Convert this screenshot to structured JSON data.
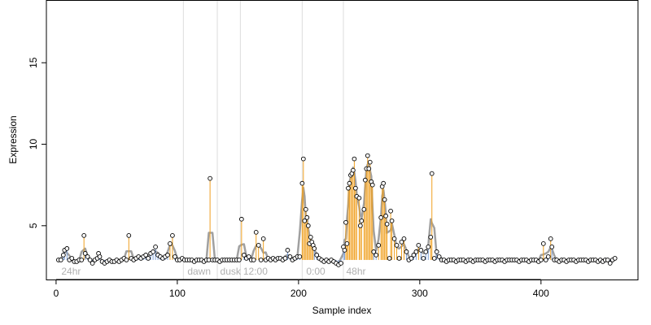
{
  "chart_data": {
    "type": "scatter",
    "title": "",
    "xlabel": "Sample index",
    "ylabel": "Expression",
    "xlim": [
      -8,
      480
    ],
    "ylim": [
      1.7,
      18.8
    ],
    "x_ticks": [
      0,
      100,
      200,
      300,
      400
    ],
    "y_ticks": [
      5,
      10,
      15
    ],
    "grid": false,
    "legend": "none",
    "region_lines": [
      105,
      133,
      152,
      203,
      237
    ],
    "region_labels": [
      {
        "x": 3,
        "text": "24hr"
      },
      {
        "x": 107,
        "text": "dawn"
      },
      {
        "x": 134,
        "text": "dusk"
      },
      {
        "x": 153,
        "text": "12:00"
      },
      {
        "x": 205,
        "text": "0:00"
      },
      {
        "x": 238,
        "text": "48hr"
      }
    ],
    "baseline": 2.9,
    "series": [
      {
        "values": [
          [
            2,
            2.9
          ],
          [
            4,
            2.9
          ],
          [
            6,
            3.2
          ],
          [
            7,
            3.5
          ],
          [
            9,
            3.6
          ],
          [
            11,
            2.9
          ],
          [
            13,
            3.0
          ],
          [
            15,
            2.8
          ],
          [
            17,
            2.8
          ],
          [
            19,
            2.9
          ],
          [
            21,
            2.9
          ],
          [
            23,
            4.4
          ],
          [
            24,
            3.3
          ],
          [
            26,
            3.1
          ],
          [
            28,
            2.9
          ],
          [
            30,
            2.7
          ],
          [
            32,
            2.9
          ],
          [
            34,
            3.0
          ],
          [
            35,
            3.3
          ],
          [
            36,
            3.1
          ],
          [
            38,
            2.8
          ],
          [
            40,
            2.7
          ],
          [
            42,
            2.8
          ],
          [
            44,
            2.9
          ],
          [
            46,
            2.8
          ],
          [
            48,
            2.8
          ],
          [
            50,
            2.9
          ],
          [
            52,
            2.8
          ],
          [
            54,
            2.9
          ],
          [
            56,
            3.0
          ],
          [
            58,
            2.9
          ],
          [
            60,
            4.4
          ],
          [
            62,
            3.0
          ],
          [
            64,
            2.9
          ],
          [
            66,
            3.0
          ],
          [
            68,
            3.1
          ],
          [
            70,
            3.0
          ],
          [
            72,
            3.1
          ],
          [
            74,
            3.2
          ],
          [
            76,
            3.0
          ],
          [
            78,
            3.3
          ],
          [
            80,
            3.4
          ],
          [
            82,
            3.7
          ],
          [
            84,
            3.2
          ],
          [
            86,
            3.1
          ],
          [
            88,
            3.0
          ],
          [
            90,
            3.1
          ],
          [
            92,
            3.2
          ],
          [
            94,
            3.9
          ],
          [
            96,
            4.4
          ],
          [
            98,
            3.1
          ],
          [
            100,
            2.9
          ],
          [
            102,
            2.9
          ],
          [
            104,
            3.0
          ],
          [
            106,
            2.9
          ],
          [
            108,
            2.9
          ],
          [
            110,
            2.9
          ],
          [
            112,
            2.9
          ],
          [
            114,
            2.8
          ],
          [
            116,
            2.9
          ],
          [
            118,
            2.9
          ],
          [
            120,
            2.9
          ],
          [
            122,
            2.8
          ],
          [
            124,
            2.9
          ],
          [
            126,
            2.9
          ],
          [
            127,
            7.9
          ],
          [
            129,
            2.9
          ],
          [
            131,
            2.9
          ],
          [
            133,
            2.9
          ],
          [
            135,
            2.8
          ],
          [
            137,
            2.9
          ],
          [
            139,
            2.9
          ],
          [
            141,
            2.9
          ],
          [
            143,
            2.9
          ],
          [
            145,
            2.9
          ],
          [
            147,
            2.9
          ],
          [
            149,
            2.9
          ],
          [
            151,
            2.9
          ],
          [
            153,
            5.4
          ],
          [
            155,
            3.2
          ],
          [
            157,
            3.0
          ],
          [
            159,
            3.1
          ],
          [
            161,
            2.9
          ],
          [
            163,
            2.9
          ],
          [
            165,
            4.6
          ],
          [
            167,
            3.8
          ],
          [
            169,
            2.9
          ],
          [
            171,
            4.2
          ],
          [
            173,
            2.9
          ],
          [
            175,
            3.0
          ],
          [
            177,
            2.9
          ],
          [
            179,
            3.0
          ],
          [
            181,
            2.9
          ],
          [
            183,
            3.0
          ],
          [
            185,
            3.0
          ],
          [
            187,
            2.9
          ],
          [
            189,
            3.0
          ],
          [
            191,
            3.5
          ],
          [
            193,
            3.1
          ],
          [
            195,
            2.9
          ],
          [
            197,
            3.0
          ],
          [
            199,
            3.1
          ],
          [
            201,
            3.1
          ],
          [
            203,
            7.6
          ],
          [
            204,
            9.1
          ],
          [
            205,
            5.3
          ],
          [
            206,
            6.0
          ],
          [
            207,
            5.5
          ],
          [
            208,
            5.0
          ],
          [
            209,
            3.9
          ],
          [
            210,
            4.3
          ],
          [
            211,
            4.0
          ],
          [
            212,
            3.8
          ],
          [
            213,
            3.6
          ],
          [
            215,
            3.2
          ],
          [
            217,
            3.0
          ],
          [
            219,
            2.9
          ],
          [
            221,
            2.8
          ],
          [
            223,
            2.9
          ],
          [
            225,
            2.8
          ],
          [
            227,
            2.9
          ],
          [
            229,
            2.8
          ],
          [
            231,
            2.7
          ],
          [
            233,
            2.6
          ],
          [
            235,
            2.7
          ],
          [
            237,
            3.7
          ],
          [
            238,
            3.5
          ],
          [
            239,
            5.2
          ],
          [
            240,
            3.9
          ],
          [
            241,
            7.3
          ],
          [
            242,
            7.6
          ],
          [
            243,
            8.1
          ],
          [
            244,
            8.2
          ],
          [
            245,
            8.4
          ],
          [
            246,
            9.1
          ],
          [
            247,
            7.3
          ],
          [
            248,
            6.8
          ],
          [
            250,
            6.7
          ],
          [
            251,
            5.0
          ],
          [
            252,
            5.3
          ],
          [
            254,
            6.0
          ],
          [
            255,
            7.8
          ],
          [
            256,
            8.5
          ],
          [
            257,
            9.3
          ],
          [
            258,
            8.5
          ],
          [
            259,
            8.9
          ],
          [
            260,
            7.7
          ],
          [
            261,
            7.5
          ],
          [
            262,
            3.4
          ],
          [
            264,
            3.2
          ],
          [
            266,
            3.8
          ],
          [
            268,
            5.5
          ],
          [
            269,
            7.4
          ],
          [
            270,
            7.6
          ],
          [
            271,
            6.6
          ],
          [
            272,
            5.6
          ],
          [
            273,
            5.1
          ],
          [
            275,
            3.0
          ],
          [
            276,
            5.9
          ],
          [
            277,
            5.3
          ],
          [
            279,
            4.2
          ],
          [
            281,
            3.8
          ],
          [
            283,
            3.0
          ],
          [
            285,
            4.0
          ],
          [
            287,
            4.2
          ],
          [
            289,
            3.4
          ],
          [
            291,
            2.9
          ],
          [
            293,
            3.0
          ],
          [
            295,
            3.2
          ],
          [
            297,
            3.4
          ],
          [
            299,
            3.8
          ],
          [
            301,
            3.5
          ],
          [
            303,
            3.0
          ],
          [
            305,
            3.4
          ],
          [
            307,
            3.7
          ],
          [
            309,
            4.3
          ],
          [
            310,
            8.2
          ],
          [
            312,
            3.0
          ],
          [
            314,
            3.4
          ],
          [
            316,
            3.1
          ],
          [
            318,
            2.9
          ],
          [
            320,
            2.9
          ],
          [
            322,
            2.8
          ],
          [
            324,
            2.9
          ],
          [
            326,
            2.9
          ],
          [
            328,
            2.9
          ],
          [
            330,
            2.8
          ],
          [
            332,
            2.9
          ],
          [
            334,
            2.9
          ],
          [
            336,
            2.9
          ],
          [
            338,
            2.8
          ],
          [
            340,
            2.9
          ],
          [
            342,
            2.9
          ],
          [
            344,
            2.8
          ],
          [
            346,
            2.9
          ],
          [
            348,
            2.9
          ],
          [
            350,
            2.9
          ],
          [
            352,
            2.9
          ],
          [
            354,
            2.8
          ],
          [
            356,
            2.9
          ],
          [
            358,
            2.9
          ],
          [
            360,
            2.9
          ],
          [
            362,
            2.8
          ],
          [
            364,
            2.9
          ],
          [
            366,
            2.9
          ],
          [
            368,
            2.9
          ],
          [
            370,
            2.8
          ],
          [
            372,
            2.9
          ],
          [
            374,
            2.9
          ],
          [
            376,
            2.9
          ],
          [
            378,
            2.9
          ],
          [
            380,
            2.9
          ],
          [
            382,
            2.8
          ],
          [
            384,
            2.9
          ],
          [
            386,
            2.9
          ],
          [
            388,
            2.9
          ],
          [
            390,
            2.8
          ],
          [
            392,
            2.9
          ],
          [
            394,
            2.9
          ],
          [
            396,
            2.9
          ],
          [
            398,
            2.8
          ],
          [
            400,
            2.9
          ],
          [
            402,
            3.9
          ],
          [
            404,
            2.9
          ],
          [
            406,
            3.1
          ],
          [
            408,
            4.2
          ],
          [
            409,
            3.7
          ],
          [
            411,
            2.9
          ],
          [
            413,
            2.9
          ],
          [
            415,
            2.8
          ],
          [
            417,
            2.9
          ],
          [
            419,
            2.9
          ],
          [
            421,
            2.8
          ],
          [
            423,
            2.9
          ],
          [
            425,
            2.9
          ],
          [
            427,
            2.9
          ],
          [
            429,
            2.8
          ],
          [
            431,
            2.9
          ],
          [
            433,
            2.9
          ],
          [
            435,
            2.9
          ],
          [
            437,
            2.9
          ],
          [
            439,
            2.8
          ],
          [
            441,
            2.9
          ],
          [
            443,
            2.9
          ],
          [
            445,
            2.9
          ],
          [
            447,
            2.8
          ],
          [
            449,
            2.9
          ],
          [
            451,
            2.8
          ],
          [
            453,
            2.9
          ],
          [
            455,
            2.9
          ],
          [
            457,
            2.7
          ],
          [
            459,
            2.9
          ],
          [
            461,
            3.0
          ]
        ]
      }
    ]
  }
}
